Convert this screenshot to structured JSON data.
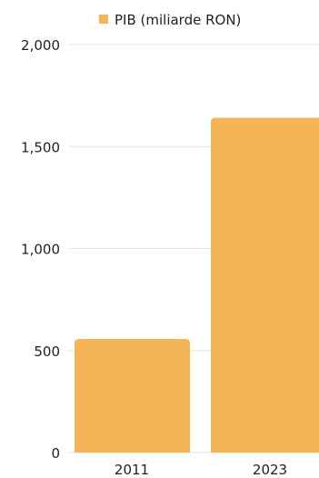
{
  "chart_data": {
    "type": "bar",
    "categories": [
      "2011",
      "2023"
    ],
    "series": [
      {
        "name": "PIB (miliarde RON)",
        "values": [
          557,
          1641
        ]
      }
    ],
    "ylim": [
      0,
      2000
    ],
    "yticks": [
      "0",
      "500",
      "1,000",
      "1,500",
      "2,000"
    ],
    "ytick_values": [
      0,
      500,
      1000,
      1500,
      2000
    ],
    "grid": true,
    "legend_position": "top",
    "colors": {
      "bar": "#F5B455",
      "grid": "#E5E5E5",
      "text": "#222222"
    }
  }
}
